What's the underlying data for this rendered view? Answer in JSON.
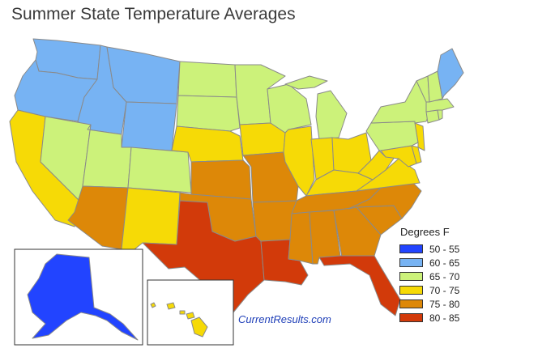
{
  "title": "Summer State Temperature Averages",
  "source_link": "CurrentResults.com",
  "legend": {
    "title": "Degrees F",
    "bins": [
      {
        "label": "50 - 55",
        "color": "#2244ff"
      },
      {
        "label": "60 - 65",
        "color": "#77b3f3"
      },
      {
        "label": "65 - 70",
        "color": "#ccf27a"
      },
      {
        "label": "70 - 75",
        "color": "#f6da06"
      },
      {
        "label": "75 - 80",
        "color": "#dd8808"
      },
      {
        "label": "80 - 85",
        "color": "#d23a0a"
      }
    ]
  },
  "regions": [
    {
      "name": "washington",
      "bin": 1
    },
    {
      "name": "oregon",
      "bin": 1
    },
    {
      "name": "idaho",
      "bin": 1
    },
    {
      "name": "montana",
      "bin": 1
    },
    {
      "name": "wyoming",
      "bin": 1
    },
    {
      "name": "california",
      "bin": 3
    },
    {
      "name": "nevada",
      "bin": 2
    },
    {
      "name": "utah",
      "bin": 2
    },
    {
      "name": "colorado",
      "bin": 2
    },
    {
      "name": "arizona",
      "bin": 4
    },
    {
      "name": "new-mexico",
      "bin": 3
    },
    {
      "name": "north-dakota",
      "bin": 2
    },
    {
      "name": "south-dakota",
      "bin": 2
    },
    {
      "name": "nebraska",
      "bin": 3
    },
    {
      "name": "kansas",
      "bin": 4
    },
    {
      "name": "oklahoma",
      "bin": 4
    },
    {
      "name": "texas",
      "bin": 5
    },
    {
      "name": "minnesota",
      "bin": 2
    },
    {
      "name": "iowa",
      "bin": 3
    },
    {
      "name": "missouri",
      "bin": 4
    },
    {
      "name": "arkansas",
      "bin": 4
    },
    {
      "name": "louisiana",
      "bin": 5
    },
    {
      "name": "wisconsin",
      "bin": 2
    },
    {
      "name": "illinois",
      "bin": 3
    },
    {
      "name": "michigan",
      "bin": 2
    },
    {
      "name": "indiana",
      "bin": 3
    },
    {
      "name": "ohio",
      "bin": 3
    },
    {
      "name": "kentucky",
      "bin": 3
    },
    {
      "name": "tennessee",
      "bin": 4
    },
    {
      "name": "mississippi",
      "bin": 4
    },
    {
      "name": "alabama",
      "bin": 4
    },
    {
      "name": "georgia",
      "bin": 4
    },
    {
      "name": "florida",
      "bin": 5
    },
    {
      "name": "south-carolina",
      "bin": 4
    },
    {
      "name": "north-carolina",
      "bin": 4
    },
    {
      "name": "virginia",
      "bin": 3
    },
    {
      "name": "west-virginia",
      "bin": 3
    },
    {
      "name": "maryland",
      "bin": 3
    },
    {
      "name": "delaware",
      "bin": 3
    },
    {
      "name": "pennsylvania",
      "bin": 2
    },
    {
      "name": "new-jersey",
      "bin": 3
    },
    {
      "name": "new-york",
      "bin": 2
    },
    {
      "name": "connecticut",
      "bin": 2
    },
    {
      "name": "rhode-island",
      "bin": 2
    },
    {
      "name": "massachusetts",
      "bin": 2
    },
    {
      "name": "vermont",
      "bin": 2
    },
    {
      "name": "new-hampshire",
      "bin": 2
    },
    {
      "name": "maine",
      "bin": 1
    },
    {
      "name": "alaska",
      "bin": 0
    },
    {
      "name": "hawaii",
      "bin": 3
    }
  ]
}
